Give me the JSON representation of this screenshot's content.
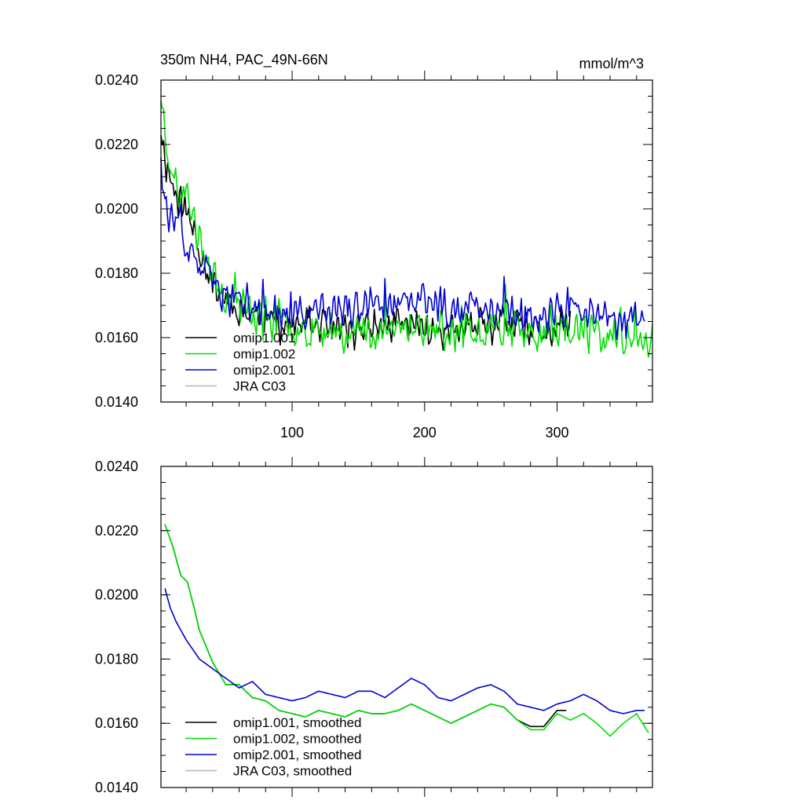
{
  "chart_data": [
    {
      "type": "line",
      "title": "350m NH4, PAC_49N-66N",
      "units": "mmol/m^3",
      "xlim": [
        1,
        372
      ],
      "ylim": [
        0.014,
        0.024
      ],
      "yticks": [
        "0.0140",
        "0.0160",
        "0.0180",
        "0.0200",
        "0.0220",
        "0.0240"
      ],
      "xticks": [
        100,
        200,
        300
      ],
      "xtick_labels": [
        "100",
        "200",
        "300"
      ],
      "legend_position": "bottom-left",
      "series": [
        {
          "name": "omip1.001",
          "color": "#000000",
          "x_end": 310,
          "keypoints": [
            [
              1,
              0.0225
            ],
            [
              5,
              0.0214
            ],
            [
              10,
              0.0207
            ],
            [
              20,
              0.0199
            ],
            [
              30,
              0.0188
            ],
            [
              40,
              0.0177
            ],
            [
              50,
              0.0172
            ],
            [
              60,
              0.0169
            ],
            [
              80,
              0.0166
            ],
            [
              100,
              0.0163
            ],
            [
              120,
              0.0164
            ],
            [
              140,
              0.0162
            ],
            [
              160,
              0.0163
            ],
            [
              180,
              0.0164
            ],
            [
              200,
              0.0163
            ],
            [
              220,
              0.0162
            ],
            [
              240,
              0.0163
            ],
            [
              260,
              0.0164
            ],
            [
              280,
              0.0161
            ],
            [
              300,
              0.0163
            ],
            [
              310,
              0.0162
            ]
          ],
          "seed": 11,
          "noise": 0.00075
        },
        {
          "name": "omip1.002",
          "color": "#00e000",
          "x_end": 372,
          "keypoints": [
            [
              1,
              0.0236
            ],
            [
              3,
              0.0228
            ],
            [
              6,
              0.0219
            ],
            [
              10,
              0.0212
            ],
            [
              15,
              0.0203
            ],
            [
              20,
              0.0206
            ],
            [
              25,
              0.0197
            ],
            [
              30,
              0.019
            ],
            [
              40,
              0.018
            ],
            [
              50,
              0.0173
            ],
            [
              60,
              0.017
            ],
            [
              80,
              0.0166
            ],
            [
              100,
              0.0163
            ],
            [
              120,
              0.0163
            ],
            [
              140,
              0.0162
            ],
            [
              160,
              0.0162
            ],
            [
              180,
              0.0163
            ],
            [
              200,
              0.0164
            ],
            [
              220,
              0.0161
            ],
            [
              240,
              0.0163
            ],
            [
              260,
              0.0164
            ],
            [
              280,
              0.016
            ],
            [
              300,
              0.0163
            ],
            [
              320,
              0.0162
            ],
            [
              340,
              0.016
            ],
            [
              360,
              0.0161
            ],
            [
              372,
              0.016
            ]
          ],
          "seed": 23,
          "noise": 0.00085
        },
        {
          "name": "omip2.001",
          "color": "#0000d0",
          "x_end": 366,
          "keypoints": [
            [
              1,
              0.0218
            ],
            [
              4,
              0.0203
            ],
            [
              8,
              0.0197
            ],
            [
              15,
              0.0193
            ],
            [
              20,
              0.0188
            ],
            [
              30,
              0.0182
            ],
            [
              40,
              0.0177
            ],
            [
              50,
              0.0172
            ],
            [
              60,
              0.0172
            ],
            [
              70,
              0.017
            ],
            [
              80,
              0.0168
            ],
            [
              100,
              0.0166
            ],
            [
              120,
              0.0169
            ],
            [
              140,
              0.0168
            ],
            [
              160,
              0.017
            ],
            [
              180,
              0.0169
            ],
            [
              200,
              0.0172
            ],
            [
              220,
              0.0168
            ],
            [
              240,
              0.017
            ],
            [
              260,
              0.0169
            ],
            [
              280,
              0.0166
            ],
            [
              300,
              0.0168
            ],
            [
              320,
              0.0167
            ],
            [
              340,
              0.0166
            ],
            [
              366,
              0.0166
            ]
          ],
          "seed": 37,
          "noise": 0.00075
        },
        {
          "name": "JRA C03",
          "color": "#b4b4b4",
          "keypoints": []
        }
      ]
    },
    {
      "type": "line",
      "title": "",
      "xlim": [
        1,
        372
      ],
      "ylim": [
        0.014,
        0.024
      ],
      "yticks": [
        "0.0140",
        "0.0160",
        "0.0180",
        "0.0200",
        "0.0220",
        "0.0240"
      ],
      "xticks": [
        100,
        200,
        300
      ],
      "xtick_labels": [],
      "legend_position": "bottom-left",
      "series": [
        {
          "name": "omip1.001, smoothed",
          "color": "#000000",
          "x_start": 4,
          "x_end": 307,
          "keypoints": [
            [
              4,
              0.0222
            ],
            [
              10,
              0.0215
            ],
            [
              16,
              0.0206
            ],
            [
              21,
              0.0204
            ],
            [
              26,
              0.0196
            ],
            [
              30,
              0.0189
            ],
            [
              40,
              0.0179
            ],
            [
              50,
              0.0172
            ],
            [
              60,
              0.0172
            ],
            [
              70,
              0.0168
            ],
            [
              80,
              0.0167
            ],
            [
              90,
              0.0164
            ],
            [
              100,
              0.0163
            ],
            [
              110,
              0.0162
            ],
            [
              120,
              0.0164
            ],
            [
              130,
              0.0163
            ],
            [
              140,
              0.0162
            ],
            [
              150,
              0.0164
            ],
            [
              160,
              0.0163
            ],
            [
              170,
              0.0163
            ],
            [
              180,
              0.0164
            ],
            [
              190,
              0.0166
            ],
            [
              200,
              0.0164
            ],
            [
              210,
              0.0162
            ],
            [
              220,
              0.016
            ],
            [
              230,
              0.0162
            ],
            [
              240,
              0.0164
            ],
            [
              250,
              0.0166
            ],
            [
              260,
              0.0165
            ],
            [
              270,
              0.0161
            ],
            [
              280,
              0.0159
            ],
            [
              290,
              0.0159
            ],
            [
              300,
              0.0164
            ],
            [
              307,
              0.0164
            ]
          ],
          "seed": 5,
          "noise": 0.0
        },
        {
          "name": "omip1.002, smoothed",
          "color": "#00e000",
          "x_start": 4,
          "x_end": 369,
          "keypoints": [
            [
              4,
              0.0222
            ],
            [
              10,
              0.0215
            ],
            [
              16,
              0.0206
            ],
            [
              21,
              0.0204
            ],
            [
              26,
              0.0196
            ],
            [
              30,
              0.0189
            ],
            [
              40,
              0.0179
            ],
            [
              50,
              0.0172
            ],
            [
              60,
              0.0172
            ],
            [
              70,
              0.0168
            ],
            [
              80,
              0.0167
            ],
            [
              90,
              0.0164
            ],
            [
              100,
              0.0163
            ],
            [
              110,
              0.0162
            ],
            [
              120,
              0.0164
            ],
            [
              130,
              0.0163
            ],
            [
              140,
              0.0162
            ],
            [
              150,
              0.0164
            ],
            [
              160,
              0.0163
            ],
            [
              170,
              0.0163
            ],
            [
              180,
              0.0164
            ],
            [
              190,
              0.0166
            ],
            [
              200,
              0.0164
            ],
            [
              210,
              0.0162
            ],
            [
              220,
              0.016
            ],
            [
              230,
              0.0162
            ],
            [
              240,
              0.0164
            ],
            [
              250,
              0.0166
            ],
            [
              260,
              0.0165
            ],
            [
              270,
              0.0161
            ],
            [
              280,
              0.0158
            ],
            [
              290,
              0.0158
            ],
            [
              300,
              0.0163
            ],
            [
              310,
              0.0161
            ],
            [
              320,
              0.0163
            ],
            [
              330,
              0.016
            ],
            [
              340,
              0.0156
            ],
            [
              350,
              0.016
            ],
            [
              360,
              0.0163
            ],
            [
              369,
              0.0157
            ]
          ],
          "seed": 6,
          "noise": 0.0
        },
        {
          "name": "omip2.001, smoothed",
          "color": "#0000d0",
          "x_start": 4,
          "x_end": 366,
          "keypoints": [
            [
              4,
              0.0202
            ],
            [
              8,
              0.0196
            ],
            [
              12,
              0.0192
            ],
            [
              20,
              0.0186
            ],
            [
              30,
              0.018
            ],
            [
              40,
              0.0177
            ],
            [
              50,
              0.0174
            ],
            [
              60,
              0.0171
            ],
            [
              70,
              0.0173
            ],
            [
              80,
              0.0169
            ],
            [
              90,
              0.0168
            ],
            [
              100,
              0.0167
            ],
            [
              110,
              0.0168
            ],
            [
              120,
              0.017
            ],
            [
              130,
              0.0169
            ],
            [
              140,
              0.0168
            ],
            [
              150,
              0.017
            ],
            [
              160,
              0.017
            ],
            [
              170,
              0.0168
            ],
            [
              180,
              0.0171
            ],
            [
              190,
              0.0174
            ],
            [
              200,
              0.0172
            ],
            [
              210,
              0.0168
            ],
            [
              220,
              0.0167
            ],
            [
              230,
              0.0169
            ],
            [
              240,
              0.0171
            ],
            [
              250,
              0.0172
            ],
            [
              260,
              0.017
            ],
            [
              270,
              0.0166
            ],
            [
              280,
              0.0165
            ],
            [
              290,
              0.0164
            ],
            [
              300,
              0.0166
            ],
            [
              310,
              0.0167
            ],
            [
              320,
              0.0169
            ],
            [
              330,
              0.0167
            ],
            [
              340,
              0.0164
            ],
            [
              350,
              0.0163
            ],
            [
              360,
              0.0164
            ],
            [
              366,
              0.0164
            ]
          ],
          "seed": 7,
          "noise": 0.0
        },
        {
          "name": "JRA C03, smoothed",
          "color": "#b4b4b4",
          "keypoints": []
        }
      ]
    }
  ]
}
